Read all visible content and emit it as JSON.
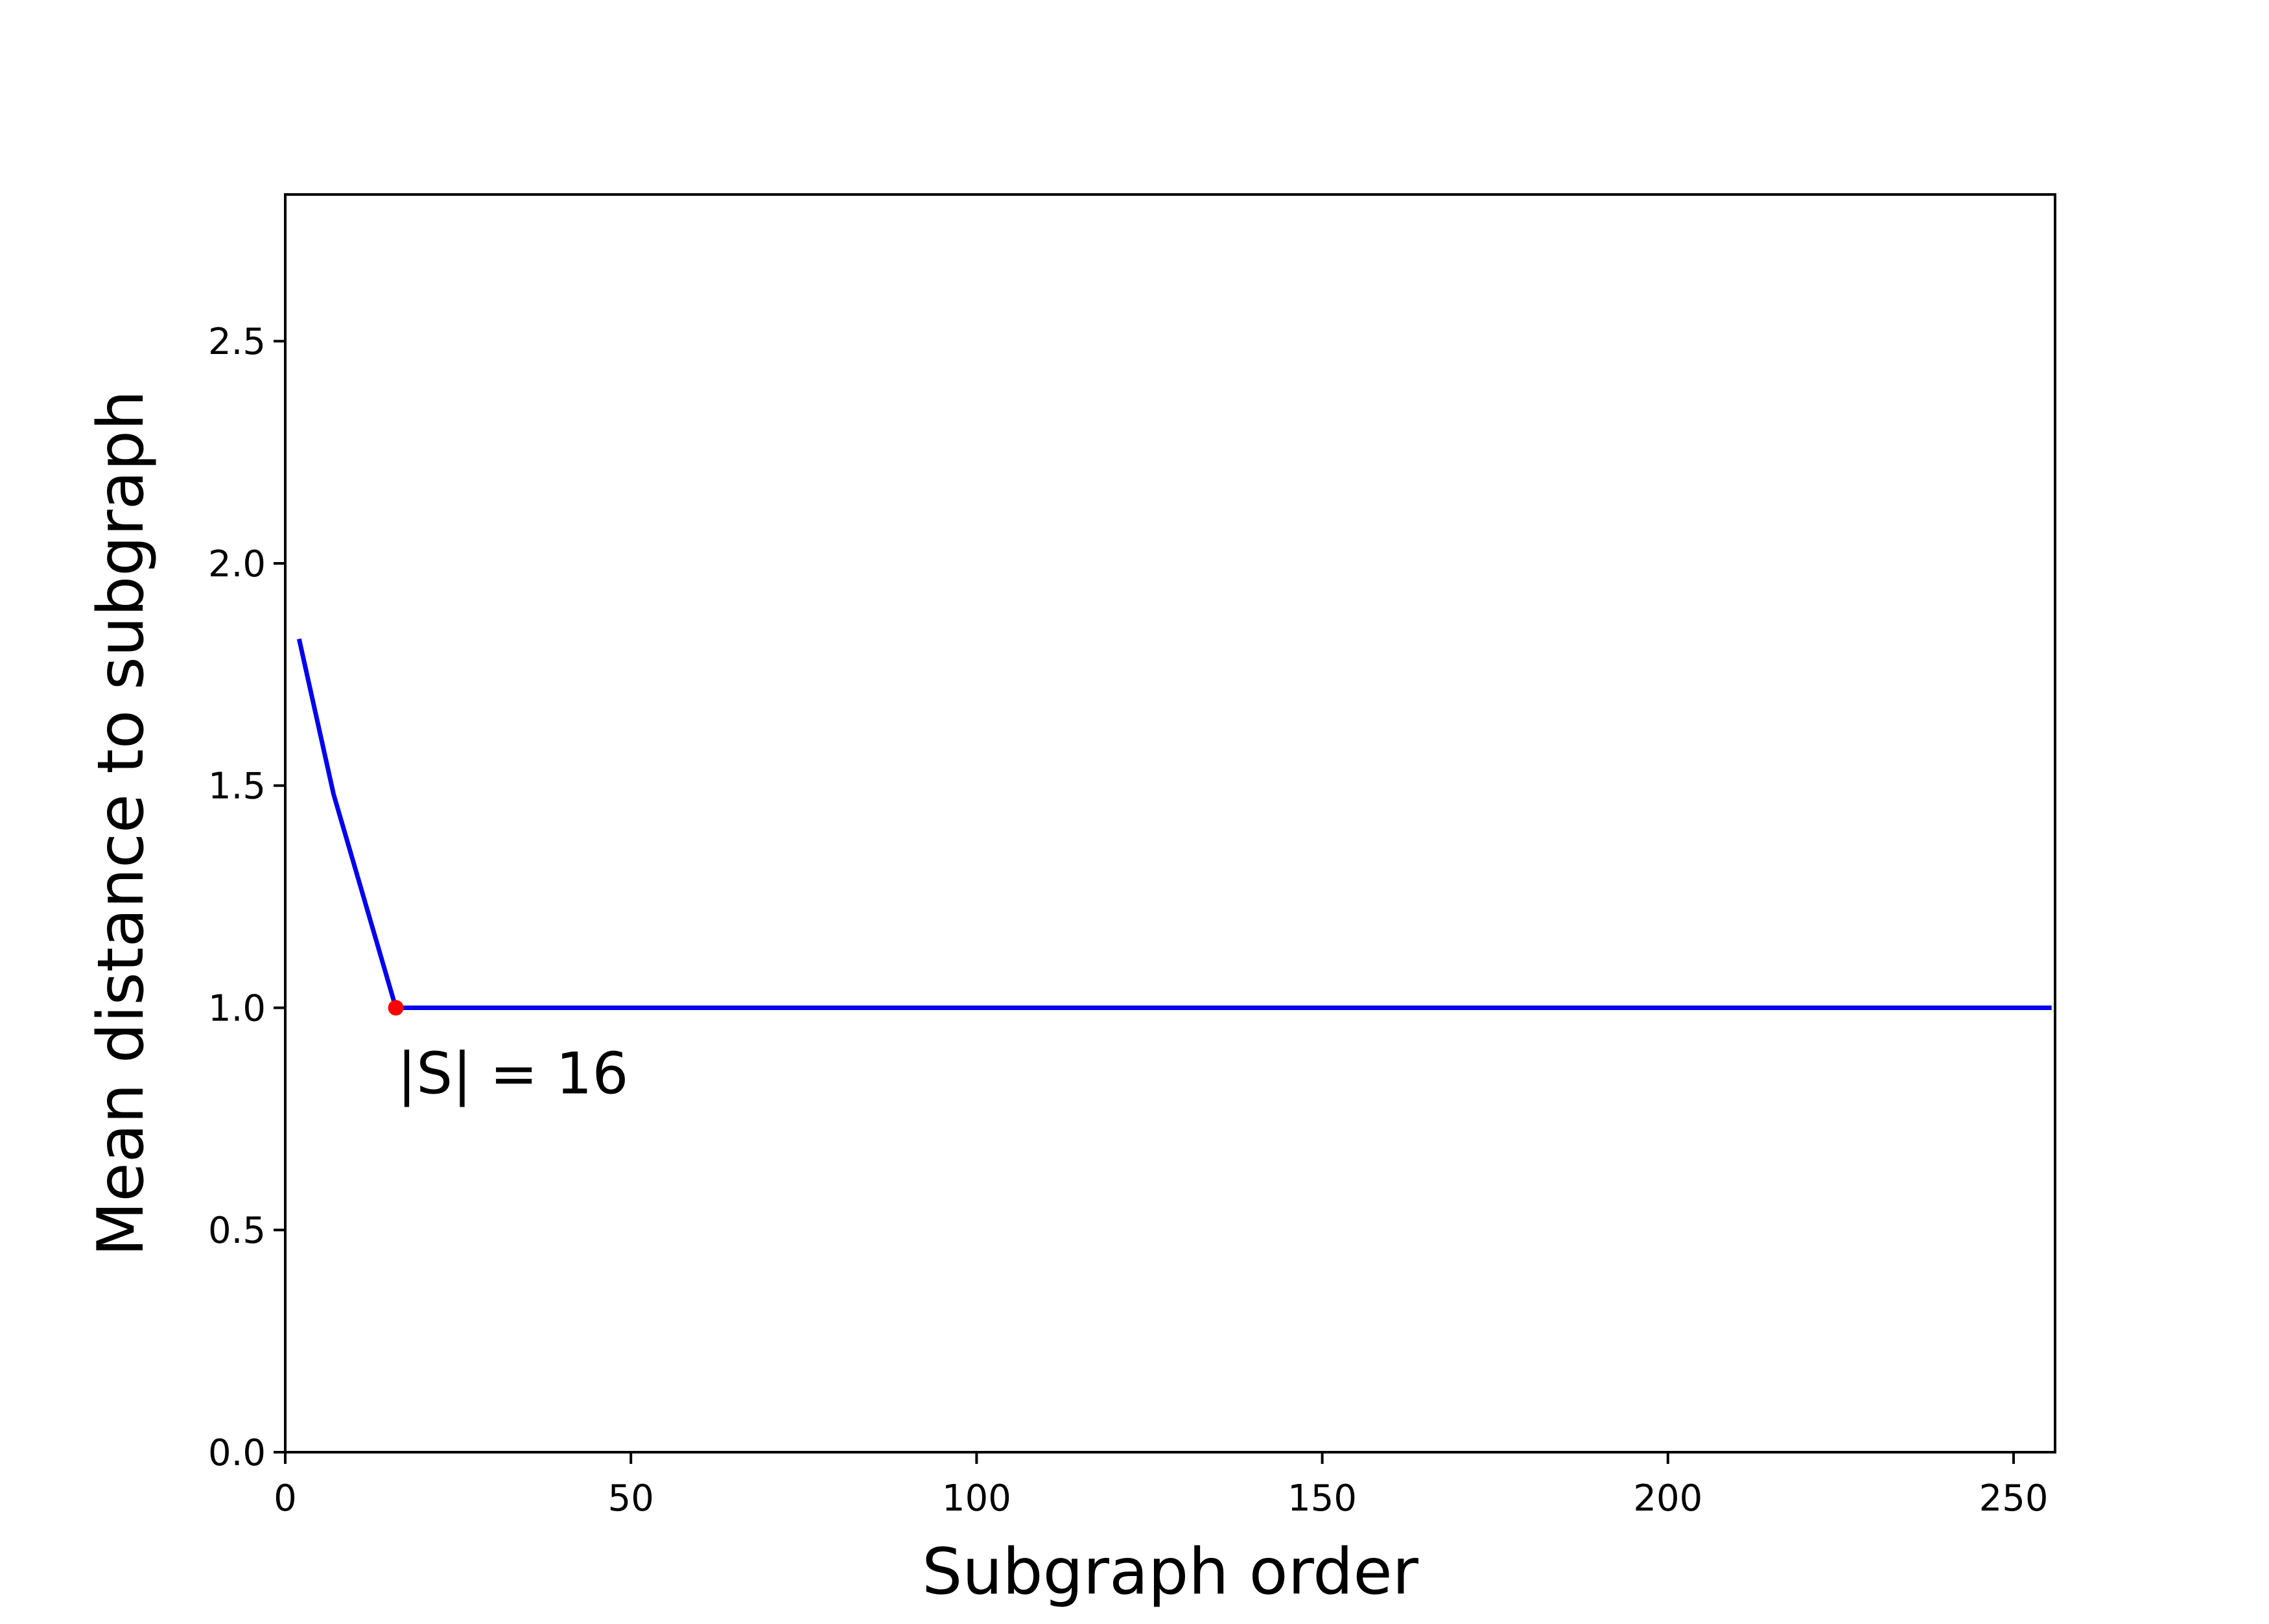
{
  "chart_data": {
    "type": "line",
    "title": "",
    "xlabel": "Subgraph order",
    "ylabel": "Mean distance to subgraph",
    "xlim": [
      0,
      256
    ],
    "ylim": [
      0,
      2.83
    ],
    "xticks": [
      0,
      50,
      100,
      150,
      200,
      250
    ],
    "yticks": [
      0.0,
      0.5,
      1.0,
      1.5,
      2.0,
      2.5
    ],
    "xtick_labels": [
      "0",
      "50",
      "100",
      "150",
      "200",
      "250"
    ],
    "ytick_labels": [
      "0.0",
      "0.5",
      "1.0",
      "1.5",
      "2.0",
      "2.5"
    ],
    "grid": false,
    "series": [
      {
        "color": "#0000ee",
        "x": [
          2,
          7,
          16,
          255.5
        ],
        "y": [
          1.83,
          1.48,
          1.0,
          1.0
        ]
      }
    ],
    "highlight_point": {
      "x": 16,
      "y": 1.0,
      "color": "#ff0000",
      "label": "|S| = 16"
    }
  }
}
